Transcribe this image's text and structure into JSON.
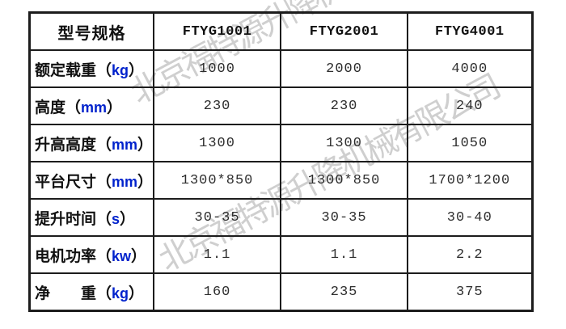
{
  "watermark": {
    "text": "北京福特源升降机械有限公司",
    "color": "#bdbdbd"
  },
  "colors": {
    "border": "#1c1c1c",
    "unit_accent": "#0022cc",
    "value_text": "#2e2e2e"
  },
  "chars": {
    "open": "（",
    "close": "）"
  },
  "table": {
    "header": [
      "型号规格",
      "FTYG1001",
      "FTYG2001",
      "FTYG4001"
    ],
    "rows": [
      {
        "label": "额定载重",
        "unit": "kg",
        "values": [
          "1000",
          "2000",
          "4000"
        ]
      },
      {
        "label": "高度",
        "unit": "mm",
        "values": [
          "230",
          "230",
          "240"
        ]
      },
      {
        "label": "升高高度",
        "unit": "mm",
        "values": [
          "1300",
          "1300",
          "1050"
        ]
      },
      {
        "label": "平台尺寸",
        "unit": "mm",
        "values": [
          "1300*850",
          "1300*850",
          "1700*1200"
        ]
      },
      {
        "label": "提升时间",
        "unit": "s",
        "values": [
          "30-35",
          "30-35",
          "30-40"
        ]
      },
      {
        "label": "电机功率",
        "unit": "kw",
        "values": [
          "1.1",
          "1.1",
          "2.2"
        ]
      },
      {
        "label": "净　　重",
        "unit": "kg",
        "values": [
          "160",
          "235",
          "375"
        ]
      }
    ]
  }
}
